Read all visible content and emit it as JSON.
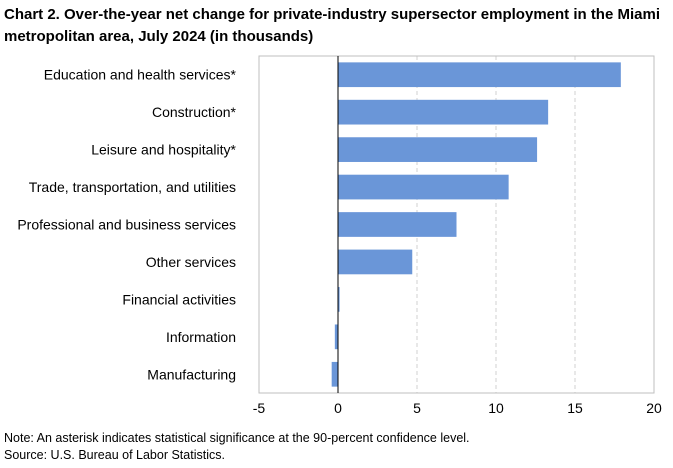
{
  "title": "Chart 2. Over-the-year net change for private-industry supersector employment in the Miami metropolitan area, July 2024 (in thousands)",
  "note": "Note: An asterisk indicates statistical significance at the 90-percent confidence level.",
  "source": "Source: U.S. Bureau of Labor Statistics.",
  "chart_data": {
    "type": "bar",
    "orientation": "horizontal",
    "categories": [
      "Education and health services*",
      "Construction*",
      "Leisure and hospitality*",
      "Trade, transportation, and utilities",
      "Professional and business services",
      "Other services",
      "Financial activities",
      "Information",
      "Manufacturing"
    ],
    "values": [
      17.9,
      13.3,
      12.6,
      10.8,
      7.5,
      4.7,
      0.1,
      -0.2,
      -0.4
    ],
    "xlim": [
      -5,
      20
    ],
    "xticks": [
      -5,
      0,
      5,
      10,
      15,
      20
    ],
    "grid": true,
    "color": "#6a96d8"
  }
}
